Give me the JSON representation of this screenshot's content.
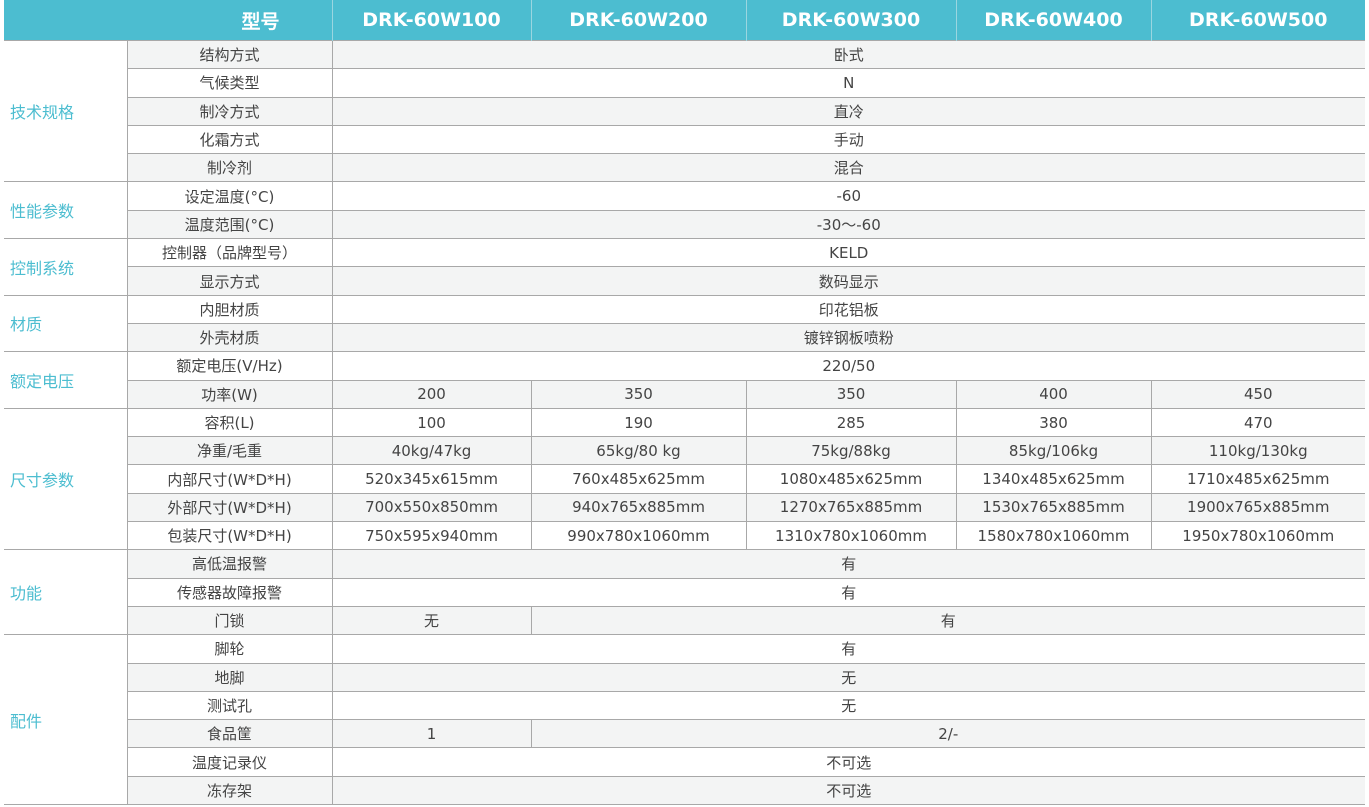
{
  "header": {
    "model_label": "型号",
    "models": [
      "DRK-60W100",
      "DRK-60W200",
      "DRK-60W300",
      "DRK-60W400",
      "DRK-60W500"
    ]
  },
  "groups": [
    {
      "name": "技术规格",
      "rows": [
        {
          "label": "结构方式",
          "cells": [
            {
              "text": "卧式",
              "span": 5
            }
          ]
        },
        {
          "label": "气候类型",
          "cells": [
            {
              "text": "N",
              "span": 5
            }
          ]
        },
        {
          "label": "制冷方式",
          "cells": [
            {
              "text": "直冷",
              "span": 5
            }
          ]
        },
        {
          "label": "化霜方式",
          "cells": [
            {
              "text": "手动",
              "span": 5
            }
          ]
        },
        {
          "label": "制冷剂",
          "cells": [
            {
              "text": "混合",
              "span": 5
            }
          ]
        }
      ]
    },
    {
      "name": "性能参数",
      "rows": [
        {
          "label": "设定温度(°C)",
          "cells": [
            {
              "text": "-60",
              "span": 5
            }
          ]
        },
        {
          "label": "温度范围(°C)",
          "cells": [
            {
              "text": "-30～-60",
              "span": 5
            }
          ]
        }
      ]
    },
    {
      "name": "控制系统",
      "rows": [
        {
          "label": "控制器（品牌型号）",
          "cells": [
            {
              "text": "KELD",
              "span": 5
            }
          ]
        },
        {
          "label": "显示方式",
          "cells": [
            {
              "text": "数码显示",
              "span": 5
            }
          ]
        }
      ]
    },
    {
      "name": "材质",
      "rows": [
        {
          "label": "内胆材质",
          "cells": [
            {
              "text": "印花铝板",
              "span": 5
            }
          ]
        },
        {
          "label": "外壳材质",
          "cells": [
            {
              "text": "镀锌钢板喷粉",
              "span": 5
            }
          ]
        }
      ]
    },
    {
      "name": "额定电压",
      "rows": [
        {
          "label": "额定电压(V/Hz)",
          "cells": [
            {
              "text": "220/50",
              "span": 5
            }
          ]
        },
        {
          "label": "功率(W)",
          "cells": [
            {
              "text": "200",
              "span": 1
            },
            {
              "text": "350",
              "span": 1
            },
            {
              "text": "350",
              "span": 1
            },
            {
              "text": "400",
              "span": 1
            },
            {
              "text": "450",
              "span": 1
            }
          ]
        }
      ]
    },
    {
      "name": "尺寸参数",
      "rows": [
        {
          "label": "容积(L)",
          "cells": [
            {
              "text": "100",
              "span": 1
            },
            {
              "text": "190",
              "span": 1
            },
            {
              "text": "285",
              "span": 1
            },
            {
              "text": "380",
              "span": 1
            },
            {
              "text": "470",
              "span": 1
            }
          ]
        },
        {
          "label": "净重/毛重",
          "cells": [
            {
              "text": "40kg/47kg",
              "span": 1
            },
            {
              "text": "65kg/80 kg",
              "span": 1
            },
            {
              "text": "75kg/88kg",
              "span": 1
            },
            {
              "text": "85kg/106kg",
              "span": 1
            },
            {
              "text": "110kg/130kg",
              "span": 1
            }
          ]
        },
        {
          "label": "内部尺寸(W*D*H)",
          "cells": [
            {
              "text": "520x345x615mm",
              "span": 1
            },
            {
              "text": "760x485x625mm",
              "span": 1
            },
            {
              "text": "1080x485x625mm",
              "span": 1
            },
            {
              "text": "1340x485x625mm",
              "span": 1
            },
            {
              "text": "1710x485x625mm",
              "span": 1
            }
          ]
        },
        {
          "label": "外部尺寸(W*D*H)",
          "cells": [
            {
              "text": "700x550x850mm",
              "span": 1
            },
            {
              "text": "940x765x885mm",
              "span": 1
            },
            {
              "text": "1270x765x885mm",
              "span": 1
            },
            {
              "text": "1530x765x885mm",
              "span": 1
            },
            {
              "text": "1900x765x885mm",
              "span": 1
            }
          ]
        },
        {
          "label": "包装尺寸(W*D*H)",
          "cells": [
            {
              "text": "750x595x940mm",
              "span": 1
            },
            {
              "text": "990x780x1060mm",
              "span": 1
            },
            {
              "text": "1310x780x1060mm",
              "span": 1
            },
            {
              "text": "1580x780x1060mm",
              "span": 1
            },
            {
              "text": "1950x780x1060mm",
              "span": 1
            }
          ]
        }
      ]
    },
    {
      "name": "功能",
      "rows": [
        {
          "label": "高低温报警",
          "cells": [
            {
              "text": "有",
              "span": 5
            }
          ]
        },
        {
          "label": "传感器故障报警",
          "cells": [
            {
              "text": "有",
              "span": 5
            }
          ]
        },
        {
          "label": "门锁",
          "cells": [
            {
              "text": "无",
              "span": 1
            },
            {
              "text": "有",
              "span": 4
            }
          ]
        }
      ]
    },
    {
      "name": "配件",
      "rows": [
        {
          "label": "脚轮",
          "cells": [
            {
              "text": "有",
              "span": 5
            }
          ]
        },
        {
          "label": "地脚",
          "cells": [
            {
              "text": "无",
              "span": 5
            }
          ]
        },
        {
          "label": "测试孔",
          "cells": [
            {
              "text": "无",
              "span": 5
            }
          ]
        },
        {
          "label": "食品筐",
          "cells": [
            {
              "text": "1",
              "span": 1
            },
            {
              "text": "2/-",
              "span": 4
            }
          ]
        },
        {
          "label": "温度记录仪",
          "cells": [
            {
              "text": "不可选",
              "span": 5
            }
          ]
        },
        {
          "label": "冻存架",
          "cells": [
            {
              "text": "不可选",
              "span": 5
            }
          ]
        }
      ]
    }
  ]
}
